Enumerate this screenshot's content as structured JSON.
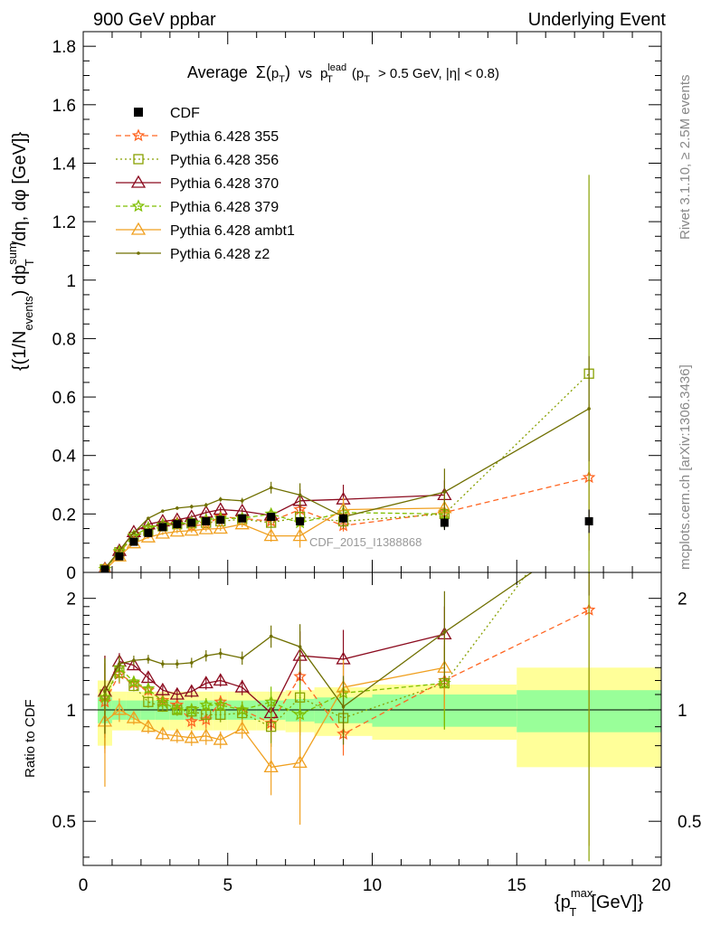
{
  "header": {
    "left": "900 GeV ppbar",
    "right": "Underlying Event",
    "side_top": "Rivet 3.1.10, ≥ 2.5M events",
    "side_bottom": "mcplots.cern.ch [arXiv:1306.3436]",
    "watermark": "CDF_2015_I1388868"
  },
  "colors": {
    "CDF": "#000000",
    "Pythia 6.428 355": "#ff6622",
    "Pythia 6.428 356": "#88a000",
    "Pythia 6.428 370": "#8b0a1e",
    "Pythia 6.428 379": "#7fbf00",
    "Pythia 6.428 ambt1": "#f0a020",
    "Pythia 6.428 z2": "#6f6f00",
    "band_inner": "#99ff99",
    "band_outer": "#ffff99"
  },
  "chart_data": {
    "type": "line",
    "title": "Average Σ(p_T) vs p_T^lead (p_T > 0.5 GeV, |η| < 0.8)",
    "title_parts": {
      "average": "Average",
      "sigma": "Σ",
      "pt": "p",
      "pt_sub": "T",
      "vs": "vs",
      "lead_sup": "lead",
      "cuts": "> 0.5 GeV, |η| < 0.8)"
    },
    "ylabel": "{(1/N_events) dp_T^sum/dη, dφ [GeV]}",
    "ylabel_parts": {
      "open": "{(1/N",
      "events": "events",
      "mid": ") dp",
      "sum": "sum",
      "t": "T",
      "tail": "/dη, dφ [GeV]}"
    },
    "ratio_ylabel": "Ratio to CDF",
    "xlabel": "{p_T^max [GeV]}",
    "xlabel_parts": {
      "open": "{p",
      "sup": "max",
      "sub": "T",
      "tail": "[GeV]}"
    },
    "xlim": [
      0,
      20
    ],
    "ylim": [
      0,
      1.85
    ],
    "ratio_ylim": [
      0.38,
      2.35
    ],
    "x_ticks": [
      "0",
      "5",
      "10",
      "15",
      "20"
    ],
    "y_ticks": [
      "0",
      "0.2",
      "0.4",
      "0.6",
      "0.8",
      "1",
      "1.2",
      "1.4",
      "1.6",
      "1.8"
    ],
    "ratio_y_ticks": [
      "0.5",
      "1",
      "2"
    ],
    "legend_position": "top-left",
    "x": [
      0.75,
      1.25,
      1.75,
      2.25,
      2.75,
      3.25,
      3.75,
      4.25,
      4.75,
      5.5,
      6.5,
      7.5,
      9.0,
      12.5,
      17.5
    ],
    "data": {
      "name": "CDF",
      "values": [
        0.01,
        0.055,
        0.105,
        0.135,
        0.155,
        0.165,
        0.17,
        0.175,
        0.18,
        0.185,
        0.19,
        0.175,
        0.185,
        0.17,
        0.175
      ],
      "errors": [
        0.004,
        0.006,
        0.007,
        0.008,
        0.008,
        0.009,
        0.009,
        0.01,
        0.01,
        0.011,
        0.012,
        0.013,
        0.015,
        0.025,
        0.04
      ],
      "band_x": [
        0.5,
        1.0,
        1.5,
        2.0,
        2.5,
        3.0,
        3.5,
        4.0,
        4.5,
        5.0,
        6.0,
        7.0,
        8.0,
        10.0,
        15.0,
        20.0
      ],
      "band_inner": [
        0.08,
        0.06,
        0.06,
        0.06,
        0.06,
        0.06,
        0.06,
        0.06,
        0.06,
        0.06,
        0.06,
        0.07,
        0.08,
        0.1,
        0.13
      ],
      "band_outer": [
        0.2,
        0.12,
        0.12,
        0.12,
        0.12,
        0.12,
        0.12,
        0.12,
        0.12,
        0.12,
        0.12,
        0.13,
        0.15,
        0.17,
        0.3
      ]
    },
    "series": [
      {
        "name": "Pythia 6.428 355",
        "marker": "star",
        "dash": "6,4",
        "values": [
          0.011,
          0.068,
          0.124,
          0.153,
          0.165,
          0.17,
          0.158,
          0.165,
          0.19,
          0.185,
          0.175,
          0.215,
          0.16,
          0.205,
          0.325
        ],
        "errors": [
          0.003,
          0.004,
          0.004,
          0.005,
          0.005,
          0.006,
          0.007,
          0.008,
          0.008,
          0.01,
          0.02,
          0.04,
          0.02,
          0.05,
          0.25
        ],
        "ratio": [
          1.05,
          1.25,
          1.18,
          1.13,
          1.06,
          1.03,
          0.93,
          0.94,
          1.05,
          1.0,
          0.92,
          1.23,
          0.86,
          1.2,
          1.86
        ]
      },
      {
        "name": "Pythia 6.428 356",
        "marker": "square",
        "dash": "2,3",
        "values": [
          0.011,
          0.069,
          0.122,
          0.142,
          0.158,
          0.165,
          0.168,
          0.17,
          0.175,
          0.182,
          0.17,
          0.19,
          0.175,
          0.2,
          0.68
        ],
        "errors": [
          0.003,
          0.004,
          0.004,
          0.005,
          0.005,
          0.006,
          0.007,
          0.008,
          0.008,
          0.01,
          0.02,
          0.04,
          0.02,
          0.05,
          0.68
        ],
        "ratio": [
          1.1,
          1.26,
          1.16,
          1.05,
          1.02,
          1.0,
          0.99,
          0.97,
          0.97,
          0.98,
          0.9,
          1.08,
          0.95,
          1.18,
          3.9
        ]
      },
      {
        "name": "Pythia 6.428 370",
        "marker": "triangle",
        "dash": "",
        "values": [
          0.012,
          0.074,
          0.138,
          0.165,
          0.175,
          0.18,
          0.19,
          0.205,
          0.215,
          0.21,
          0.195,
          0.245,
          0.25,
          0.265,
          0.0
        ],
        "errors": [
          0.003,
          0.004,
          0.004,
          0.005,
          0.005,
          0.006,
          0.007,
          0.008,
          0.008,
          0.01,
          0.02,
          0.04,
          0.05,
          0.05,
          0.0
        ],
        "ratio": [
          1.12,
          1.35,
          1.32,
          1.22,
          1.13,
          1.1,
          1.12,
          1.18,
          1.2,
          1.15,
          0.98,
          1.4,
          1.37,
          1.6,
          0.0
        ]
      },
      {
        "name": "Pythia 6.428 379",
        "marker": "star",
        "dash": "5,3",
        "values": [
          0.011,
          0.072,
          0.125,
          0.153,
          0.163,
          0.165,
          0.17,
          0.18,
          0.185,
          0.185,
          0.2,
          0.17,
          0.205,
          0.2,
          0.0
        ],
        "errors": [
          0.003,
          0.004,
          0.004,
          0.005,
          0.005,
          0.006,
          0.007,
          0.008,
          0.008,
          0.01,
          0.02,
          0.04,
          0.02,
          0.05,
          0.0
        ],
        "ratio": [
          1.08,
          1.3,
          1.19,
          1.14,
          1.05,
          1.0,
          1.0,
          1.03,
          1.03,
          1.0,
          1.05,
          0.97,
          1.11,
          1.18,
          0.0
        ]
      },
      {
        "name": "Pythia 6.428 ambt1",
        "marker": "triangle",
        "dash": "",
        "values": [
          0.009,
          0.055,
          0.1,
          0.12,
          0.133,
          0.14,
          0.143,
          0.148,
          0.15,
          0.165,
          0.125,
          0.125,
          0.215,
          0.22,
          0.0
        ],
        "errors": [
          0.003,
          0.004,
          0.004,
          0.005,
          0.005,
          0.006,
          0.007,
          0.008,
          0.008,
          0.01,
          0.02,
          0.04,
          0.04,
          0.05,
          0.0
        ],
        "ratio": [
          0.93,
          1.0,
          0.95,
          0.9,
          0.86,
          0.85,
          0.84,
          0.85,
          0.83,
          0.89,
          0.7,
          0.72,
          1.15,
          1.3,
          0.0
        ]
      },
      {
        "name": "Pythia 6.428 z2",
        "marker": "dot",
        "dash": "",
        "values": [
          0.013,
          0.075,
          0.135,
          0.185,
          0.21,
          0.22,
          0.225,
          0.23,
          0.25,
          0.245,
          0.29,
          0.265,
          0.19,
          0.275,
          0.56
        ],
        "errors": [
          0.003,
          0.004,
          0.004,
          0.005,
          0.005,
          0.006,
          0.007,
          0.008,
          0.008,
          0.01,
          0.02,
          0.04,
          0.04,
          0.08,
          0.18
        ],
        "ratio": [
          1.12,
          1.33,
          1.36,
          1.37,
          1.33,
          1.33,
          1.34,
          1.4,
          1.42,
          1.38,
          1.58,
          1.48,
          1.02,
          1.62,
          3.0
        ]
      }
    ]
  }
}
